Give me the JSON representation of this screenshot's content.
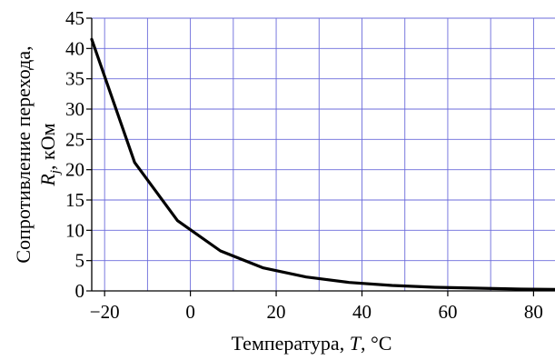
{
  "chart_data": {
    "type": "line",
    "xlabel": "Температура, T, °С",
    "xlabel_parts": [
      "Температура, ",
      "T",
      ", °С"
    ],
    "ylabel": "Сопротивление перехода, Rj, кОм",
    "ylabel_line1": "Сопротивление перехода,",
    "ylabel_line2_parts": [
      "R",
      "j",
      ", кОм"
    ],
    "xlim": [
      -23,
      85
    ],
    "ylim": [
      0,
      45
    ],
    "x_ticks": [
      -20,
      0,
      20,
      40,
      60,
      80
    ],
    "y_ticks": [
      0,
      5,
      10,
      15,
      20,
      25,
      30,
      35,
      40,
      45
    ],
    "x_ticklabels": [
      "−20",
      "0",
      "20",
      "40",
      "60",
      "80"
    ],
    "y_ticklabels": [
      "0",
      "5",
      "10",
      "15",
      "20",
      "25",
      "30",
      "35",
      "40",
      "45"
    ],
    "grid": true,
    "x_minor_grid_step": 10,
    "series": [
      {
        "x": [
          -23,
          -13,
          -3,
          7,
          17,
          27,
          37,
          47,
          57,
          67,
          77,
          85
        ],
        "y": [
          41.5,
          21.2,
          11.6,
          6.6,
          3.8,
          2.3,
          1.4,
          0.9,
          0.6,
          0.45,
          0.3,
          0.25
        ]
      }
    ],
    "colors": {
      "line": "#000000",
      "grid": "#6b6bdb",
      "axis": "#000000"
    }
  }
}
